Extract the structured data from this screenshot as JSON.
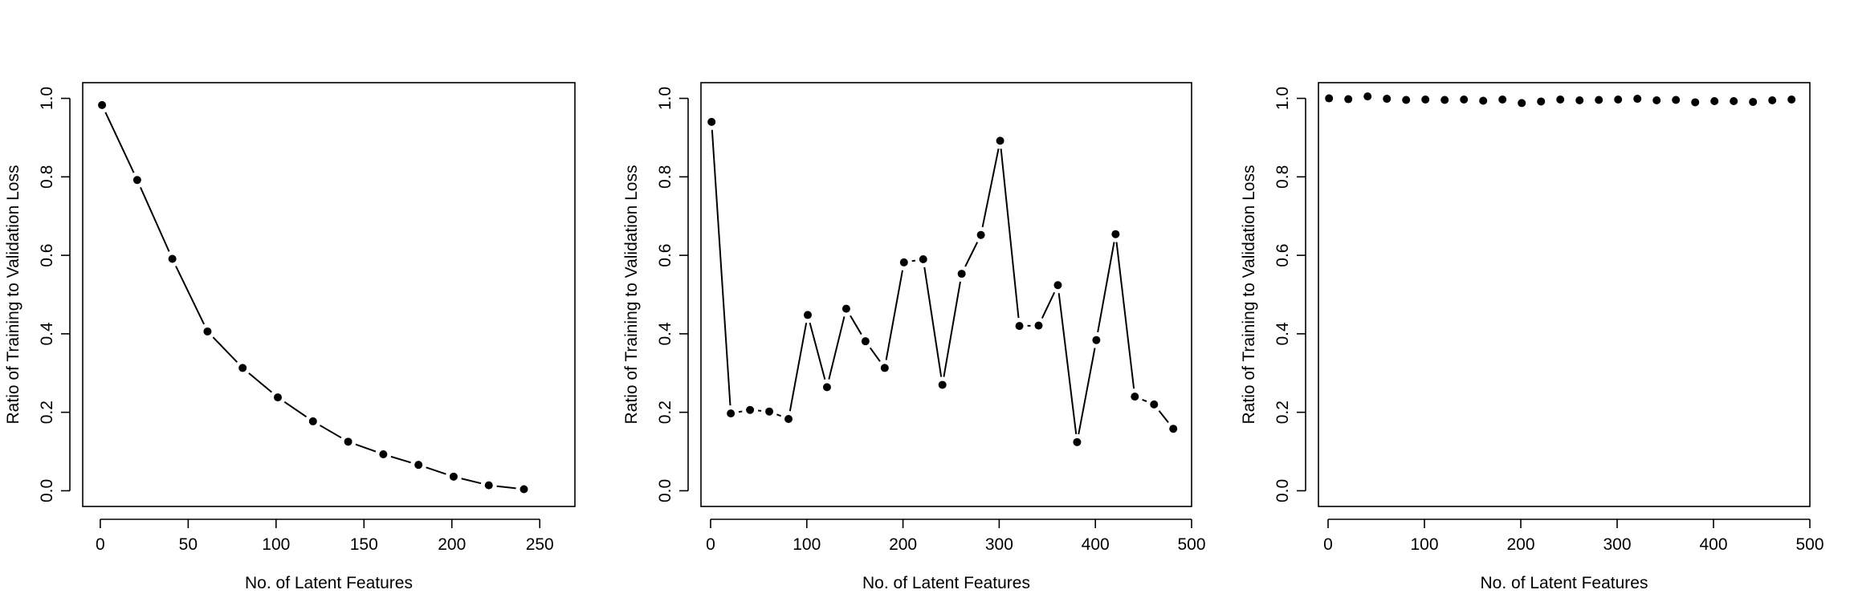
{
  "chart_data": [
    {
      "type": "line",
      "xlabel": "No. of Latent Features",
      "ylabel": "Ratio of Training to Validation Loss",
      "xlim": [
        -10,
        270
      ],
      "ylim": [
        -0.04,
        1.04
      ],
      "xticks": [
        0,
        50,
        100,
        150,
        200,
        250
      ],
      "xtick_labels": [
        "0",
        "50",
        "100",
        "150",
        "200",
        "250"
      ],
      "yticks": [
        0.0,
        0.2,
        0.4,
        0.6,
        0.8,
        1.0
      ],
      "ytick_labels": [
        "0.0",
        "0.2",
        "0.4",
        "0.6",
        "0.8",
        "1.0"
      ],
      "line_type": "b",
      "grid": false,
      "series": [
        {
          "x": [
            1,
            21,
            41,
            61,
            81,
            101,
            121,
            141,
            161,
            181,
            201,
            221,
            241
          ],
          "y": [
            0.983,
            0.792,
            0.591,
            0.406,
            0.313,
            0.238,
            0.177,
            0.125,
            0.093,
            0.066,
            0.036,
            0.014,
            0.004
          ]
        }
      ]
    },
    {
      "type": "line",
      "xlabel": "No. of Latent Features",
      "ylabel": "Ratio of Training to Validation Loss",
      "xlim": [
        -10,
        500
      ],
      "ylim": [
        -0.04,
        1.04
      ],
      "xticks": [
        0,
        100,
        200,
        300,
        400,
        500
      ],
      "xtick_labels": [
        "0",
        "100",
        "200",
        "300",
        "400",
        "500"
      ],
      "yticks": [
        0.0,
        0.2,
        0.4,
        0.6,
        0.8,
        1.0
      ],
      "ytick_labels": [
        "0.0",
        "0.2",
        "0.4",
        "0.6",
        "0.8",
        "1.0"
      ],
      "line_type": "b",
      "grid": false,
      "series": [
        {
          "x": [
            1,
            21,
            41,
            61,
            81,
            101,
            121,
            141,
            161,
            181,
            201,
            221,
            241,
            261,
            281,
            301,
            321,
            341,
            361,
            381,
            401,
            421,
            441,
            461,
            481
          ],
          "y": [
            0.94,
            0.197,
            0.206,
            0.202,
            0.183,
            0.448,
            0.264,
            0.464,
            0.381,
            0.313,
            0.582,
            0.59,
            0.27,
            0.553,
            0.652,
            0.892,
            0.42,
            0.421,
            0.524,
            0.124,
            0.384,
            0.654,
            0.24,
            0.22,
            0.158
          ]
        }
      ]
    },
    {
      "type": "scatter",
      "xlabel": "No. of Latent Features",
      "ylabel": "Ratio of Training to Validation Loss",
      "xlim": [
        -10,
        500
      ],
      "ylim": [
        -0.04,
        1.04
      ],
      "xticks": [
        0,
        100,
        200,
        300,
        400,
        500
      ],
      "xtick_labels": [
        "0",
        "100",
        "200",
        "300",
        "400",
        "500"
      ],
      "yticks": [
        0.0,
        0.2,
        0.4,
        0.6,
        0.8,
        1.0
      ],
      "ytick_labels": [
        "0.0",
        "0.2",
        "0.4",
        "0.6",
        "0.8",
        "1.0"
      ],
      "line_type": "p",
      "grid": false,
      "series": [
        {
          "x": [
            1,
            21,
            41,
            61,
            81,
            101,
            121,
            141,
            161,
            181,
            201,
            221,
            241,
            261,
            281,
            301,
            321,
            341,
            361,
            381,
            401,
            421,
            441,
            461,
            481
          ],
          "y": [
            1.0,
            0.998,
            1.005,
            0.999,
            0.996,
            0.997,
            0.996,
            0.997,
            0.994,
            0.997,
            0.988,
            0.992,
            0.997,
            0.995,
            0.996,
            0.997,
            0.999,
            0.995,
            0.996,
            0.99,
            0.993,
            0.993,
            0.991,
            0.995,
            0.997
          ]
        }
      ]
    }
  ]
}
